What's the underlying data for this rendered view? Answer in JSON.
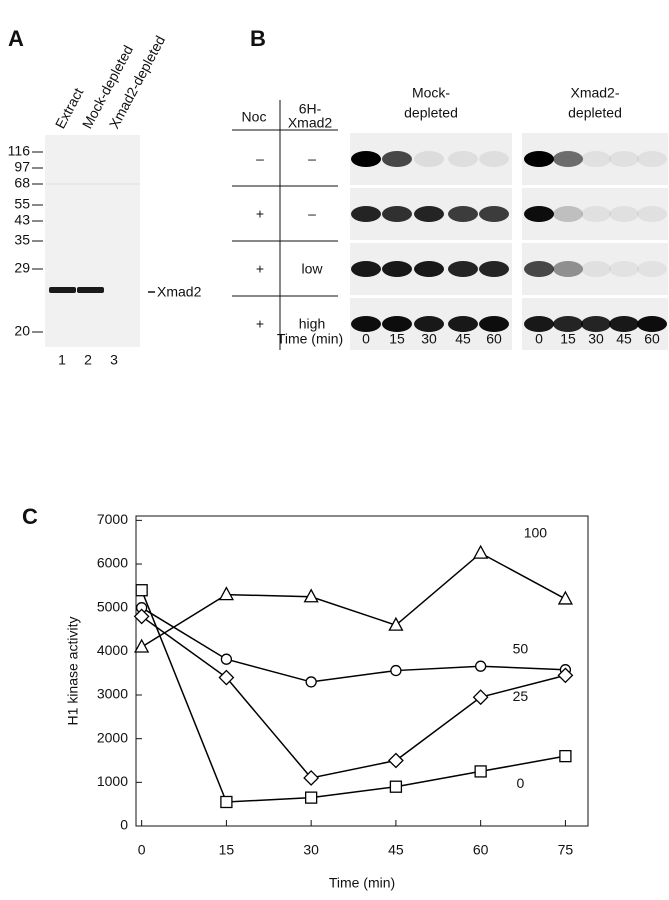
{
  "panel_a": {
    "label": "A",
    "lanes": [
      "Extract",
      "Mock-depleted",
      "Xmad2-depleted"
    ],
    "markers": [
      116,
      97,
      68,
      55,
      43,
      35,
      29,
      20
    ],
    "band_label": "Xmad2",
    "lane_numbers": [
      1,
      2,
      3
    ]
  },
  "panel_b": {
    "label": "B",
    "headers": [
      [
        "Noc"
      ],
      [
        "6H-",
        "Xmad2"
      ]
    ],
    "rows": [
      [
        "–",
        "–"
      ],
      [
        "+",
        "–"
      ],
      [
        "+",
        "low"
      ],
      [
        "+",
        "high"
      ]
    ],
    "time_label": "Time (min)",
    "blots": [
      {
        "title": [
          "Mock-",
          "depleted"
        ],
        "times": [
          0,
          15,
          30,
          45,
          60
        ]
      },
      {
        "title": [
          "Xmad2-",
          "depleted"
        ],
        "times": [
          0,
          15,
          30,
          45,
          60
        ]
      }
    ]
  },
  "chart_data": {
    "type": "line",
    "label": "C",
    "x_label": "Time (min)",
    "y_label": "H1 kinase activity",
    "x": [
      0,
      15,
      30,
      45,
      60,
      75
    ],
    "xlim": [
      -1,
      79
    ],
    "xticks": [
      0,
      15,
      30,
      45,
      60,
      75
    ],
    "ylim": [
      0,
      7100
    ],
    "yticks": [
      0,
      1000,
      2000,
      3000,
      4000,
      5000,
      6000,
      7000
    ],
    "series": [
      {
        "name": "100",
        "color": "#000000",
        "marker": "triangle",
        "values": [
          4100,
          5300,
          5250,
          4600,
          6250,
          5200
        ]
      },
      {
        "name": "50",
        "color": "#000000",
        "marker": "circle",
        "values": [
          5000,
          3820,
          3300,
          3560,
          3660,
          3580
        ]
      },
      {
        "name": "25",
        "color": "#000000",
        "marker": "diamond",
        "values": [
          4800,
          3400,
          1100,
          1500,
          2950,
          3450
        ]
      },
      {
        "name": "0",
        "color": "#000000",
        "marker": "square",
        "values": [
          5400,
          550,
          650,
          900,
          1250,
          1600
        ]
      }
    ]
  }
}
